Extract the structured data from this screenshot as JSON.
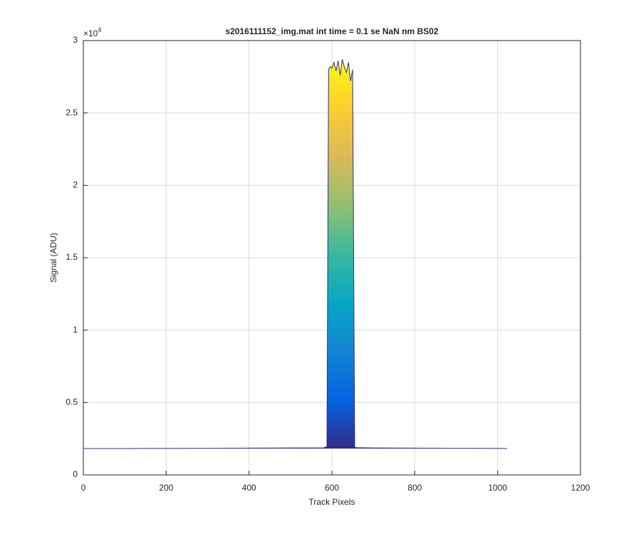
{
  "chart_data": {
    "type": "area",
    "title": "s2016111152_img.mat int time = 0.1 se  NaN nm BS02",
    "x_label": "Track Pixels",
    "y_label": "Signal (ADU)",
    "y_exponent": {
      "base": "×10",
      "power": "4"
    },
    "x": [
      0,
      100,
      200,
      300,
      400,
      500,
      580,
      588,
      592,
      596,
      600,
      605,
      610,
      615,
      620,
      625,
      630,
      635,
      640,
      645,
      650,
      655,
      660,
      700,
      800,
      900,
      1000,
      1023
    ],
    "values": [
      1820,
      1820,
      1830,
      1840,
      1850,
      1860,
      1870,
      1950,
      28000,
      28200,
      28100,
      28500,
      27900,
      28600,
      27600,
      28700,
      28200,
      27800,
      28500,
      27200,
      28000,
      1900,
      1880,
      1860,
      1850,
      1840,
      1830,
      1820
    ],
    "color": "#2c2f8a",
    "colormap": [
      "#352a87",
      "#0363e1",
      "#1485d4",
      "#06a7c6",
      "#38b99e",
      "#92bf73",
      "#d9ba56",
      "#fcce2e",
      "#f9fb0e"
    ],
    "xlim": [
      0,
      1200
    ],
    "xticks": [
      0,
      200,
      400,
      600,
      800,
      1000,
      1200
    ],
    "ylim": [
      0,
      30000
    ],
    "yticks": [
      0,
      {
        "value": 5000,
        "label": "0.5"
      },
      {
        "value": 10000,
        "label": "1"
      },
      {
        "value": 15000,
        "label": "1.5"
      },
      {
        "value": 20000,
        "label": "2"
      },
      {
        "value": 25000,
        "label": "2.5"
      },
      {
        "value": 30000,
        "label": "3"
      }
    ],
    "grid": true
  }
}
